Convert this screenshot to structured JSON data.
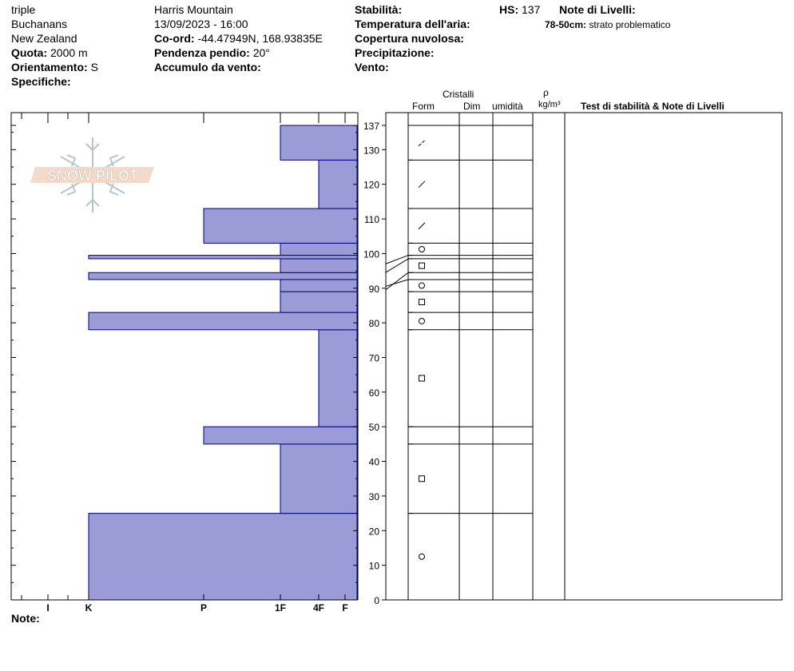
{
  "header": {
    "col1": {
      "line1": "triple",
      "line2": "Buchanans",
      "line3": "New Zealand",
      "quota_label": "Quota:",
      "quota_value": "2000 m",
      "orient_label": "Orientamento:",
      "orient_value": "S",
      "spec_label": "Specifiche:"
    },
    "col2": {
      "location": "Harris Mountain",
      "datetime": "13/09/2023 - 16:00",
      "coord_label": "Co-ord:",
      "coord_value": "-44.47949N, 168.93835E",
      "slope_label": "Pendenza pendio:",
      "slope_value": "20°",
      "wind_loading_label": "Accumulo da vento:"
    },
    "col3": {
      "stability_label": "Stabilità:",
      "air_temp_label": "Temperatura dell'aria:",
      "cloud_label": "Copertura nuvolosa:",
      "precip_label": "Precipitazione:",
      "wind_label": "Vento:"
    },
    "hs_label": "HS:",
    "hs_value": "137",
    "layer_notes_label": "Note di Livelli:",
    "layer_note_depth": "78-50cm:",
    "layer_note_text": "strato problematico"
  },
  "table_headers": {
    "crystals": "Cristalli",
    "form": "Form",
    "dim": "Dim",
    "moisture": "umidità",
    "rho": "ρ",
    "density_unit": "kg/m³",
    "tests": "Test di stabilità & Note di Livelli"
  },
  "logo_text": "SNOW PILOT",
  "notes_label": "Note:",
  "chart_data": {
    "type": "bar",
    "orientation": "horizontal",
    "xlabel": "",
    "ylabel": "",
    "x_categories": [
      "F",
      "4F",
      "1F",
      "P",
      "K",
      "I"
    ],
    "hs_cm": 137,
    "ylim": [
      0,
      137
    ],
    "y_ticks": [
      0,
      10,
      20,
      30,
      40,
      50,
      60,
      70,
      80,
      90,
      100,
      110,
      120,
      130,
      137
    ],
    "bar_color": "#9b9bd7",
    "bar_edge_color": "#000080",
    "layers": [
      {
        "bottom": 0,
        "top": 25,
        "hardness": "K",
        "grain": "round"
      },
      {
        "bottom": 25,
        "top": 45,
        "hardness": "1F",
        "grain": "faceted"
      },
      {
        "bottom": 45,
        "top": 50,
        "hardness": "P",
        "grain": ""
      },
      {
        "bottom": 50,
        "top": 78,
        "hardness": "4F",
        "grain": "faceted"
      },
      {
        "bottom": 78,
        "top": 83,
        "hardness": "K",
        "grain": "round"
      },
      {
        "bottom": 83,
        "top": 89,
        "hardness": "1F",
        "grain": "faceted"
      },
      {
        "bottom": 89,
        "top": 92.5,
        "hardness": "1F",
        "grain": "round"
      },
      {
        "bottom": 92.5,
        "top": 94.5,
        "hardness": "K",
        "grain": ""
      },
      {
        "bottom": 94.5,
        "top": 98.5,
        "hardness": "1F",
        "grain": "faceted"
      },
      {
        "bottom": 98.5,
        "top": 99.5,
        "hardness": "K",
        "grain": ""
      },
      {
        "bottom": 99.5,
        "top": 103,
        "hardness": "1F",
        "grain": "round"
      },
      {
        "bottom": 103,
        "top": 113,
        "hardness": "P",
        "grain": "precip-particle"
      },
      {
        "bottom": 113,
        "top": 127,
        "hardness": "4F",
        "grain": "precip-particle"
      },
      {
        "bottom": 127,
        "top": 137,
        "hardness": "1F",
        "grain": "decomposed"
      }
    ]
  }
}
